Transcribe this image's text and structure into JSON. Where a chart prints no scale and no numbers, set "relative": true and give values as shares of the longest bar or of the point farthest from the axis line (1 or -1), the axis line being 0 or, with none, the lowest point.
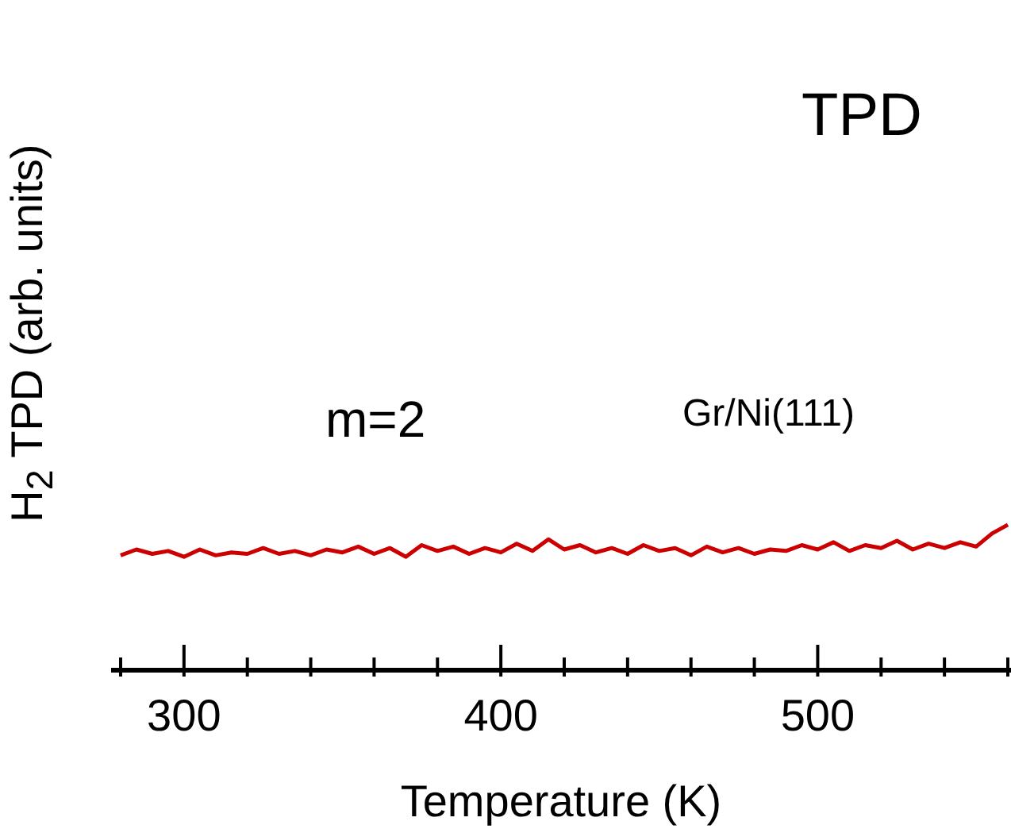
{
  "chart_data": {
    "type": "line",
    "relative": true,
    "xlabel": "Temperature (K)",
    "ylabel": "H$_{2}$ TPD (arb. units)",
    "annotations": [
      "TPD",
      "m=2",
      "Gr/Ni(111)"
    ],
    "xlim": [
      277,
      561
    ],
    "xticks": [
      {
        "value": 280,
        "label": null
      },
      300,
      {
        "value": 320,
        "label": null
      },
      {
        "value": 340,
        "label": null
      },
      {
        "value": 360,
        "label": null
      },
      {
        "value": 380,
        "label": null
      },
      400,
      {
        "value": 420,
        "label": null
      },
      {
        "value": 440,
        "label": null
      },
      {
        "value": 460,
        "label": null
      },
      {
        "value": 480,
        "label": null
      },
      500,
      {
        "value": 520,
        "label": null
      },
      {
        "value": 540,
        "label": null
      },
      {
        "value": 560,
        "label": null
      }
    ],
    "x": [
      280,
      285,
      290,
      295,
      300,
      305,
      310,
      315,
      320,
      325,
      330,
      335,
      340,
      345,
      350,
      355,
      360,
      365,
      370,
      375,
      380,
      385,
      390,
      395,
      400,
      405,
      410,
      415,
      420,
      425,
      430,
      435,
      440,
      445,
      450,
      455,
      460,
      465,
      470,
      475,
      480,
      485,
      490,
      495,
      500,
      505,
      510,
      515,
      520,
      525,
      530,
      535,
      540,
      545,
      550,
      555,
      560
    ],
    "series": [
      {
        "color": "#cc0000",
        "values": [
          0.79,
          0.83,
          0.8,
          0.82,
          0.78,
          0.83,
          0.79,
          0.81,
          0.8,
          0.84,
          0.8,
          0.82,
          0.79,
          0.83,
          0.81,
          0.85,
          0.8,
          0.84,
          0.78,
          0.86,
          0.82,
          0.85,
          0.8,
          0.84,
          0.81,
          0.87,
          0.82,
          0.9,
          0.83,
          0.86,
          0.81,
          0.84,
          0.8,
          0.86,
          0.82,
          0.84,
          0.79,
          0.85,
          0.81,
          0.84,
          0.8,
          0.83,
          0.82,
          0.86,
          0.83,
          0.88,
          0.82,
          0.86,
          0.84,
          0.89,
          0.83,
          0.87,
          0.84,
          0.88,
          0.85,
          0.94,
          1
        ]
      }
    ]
  }
}
